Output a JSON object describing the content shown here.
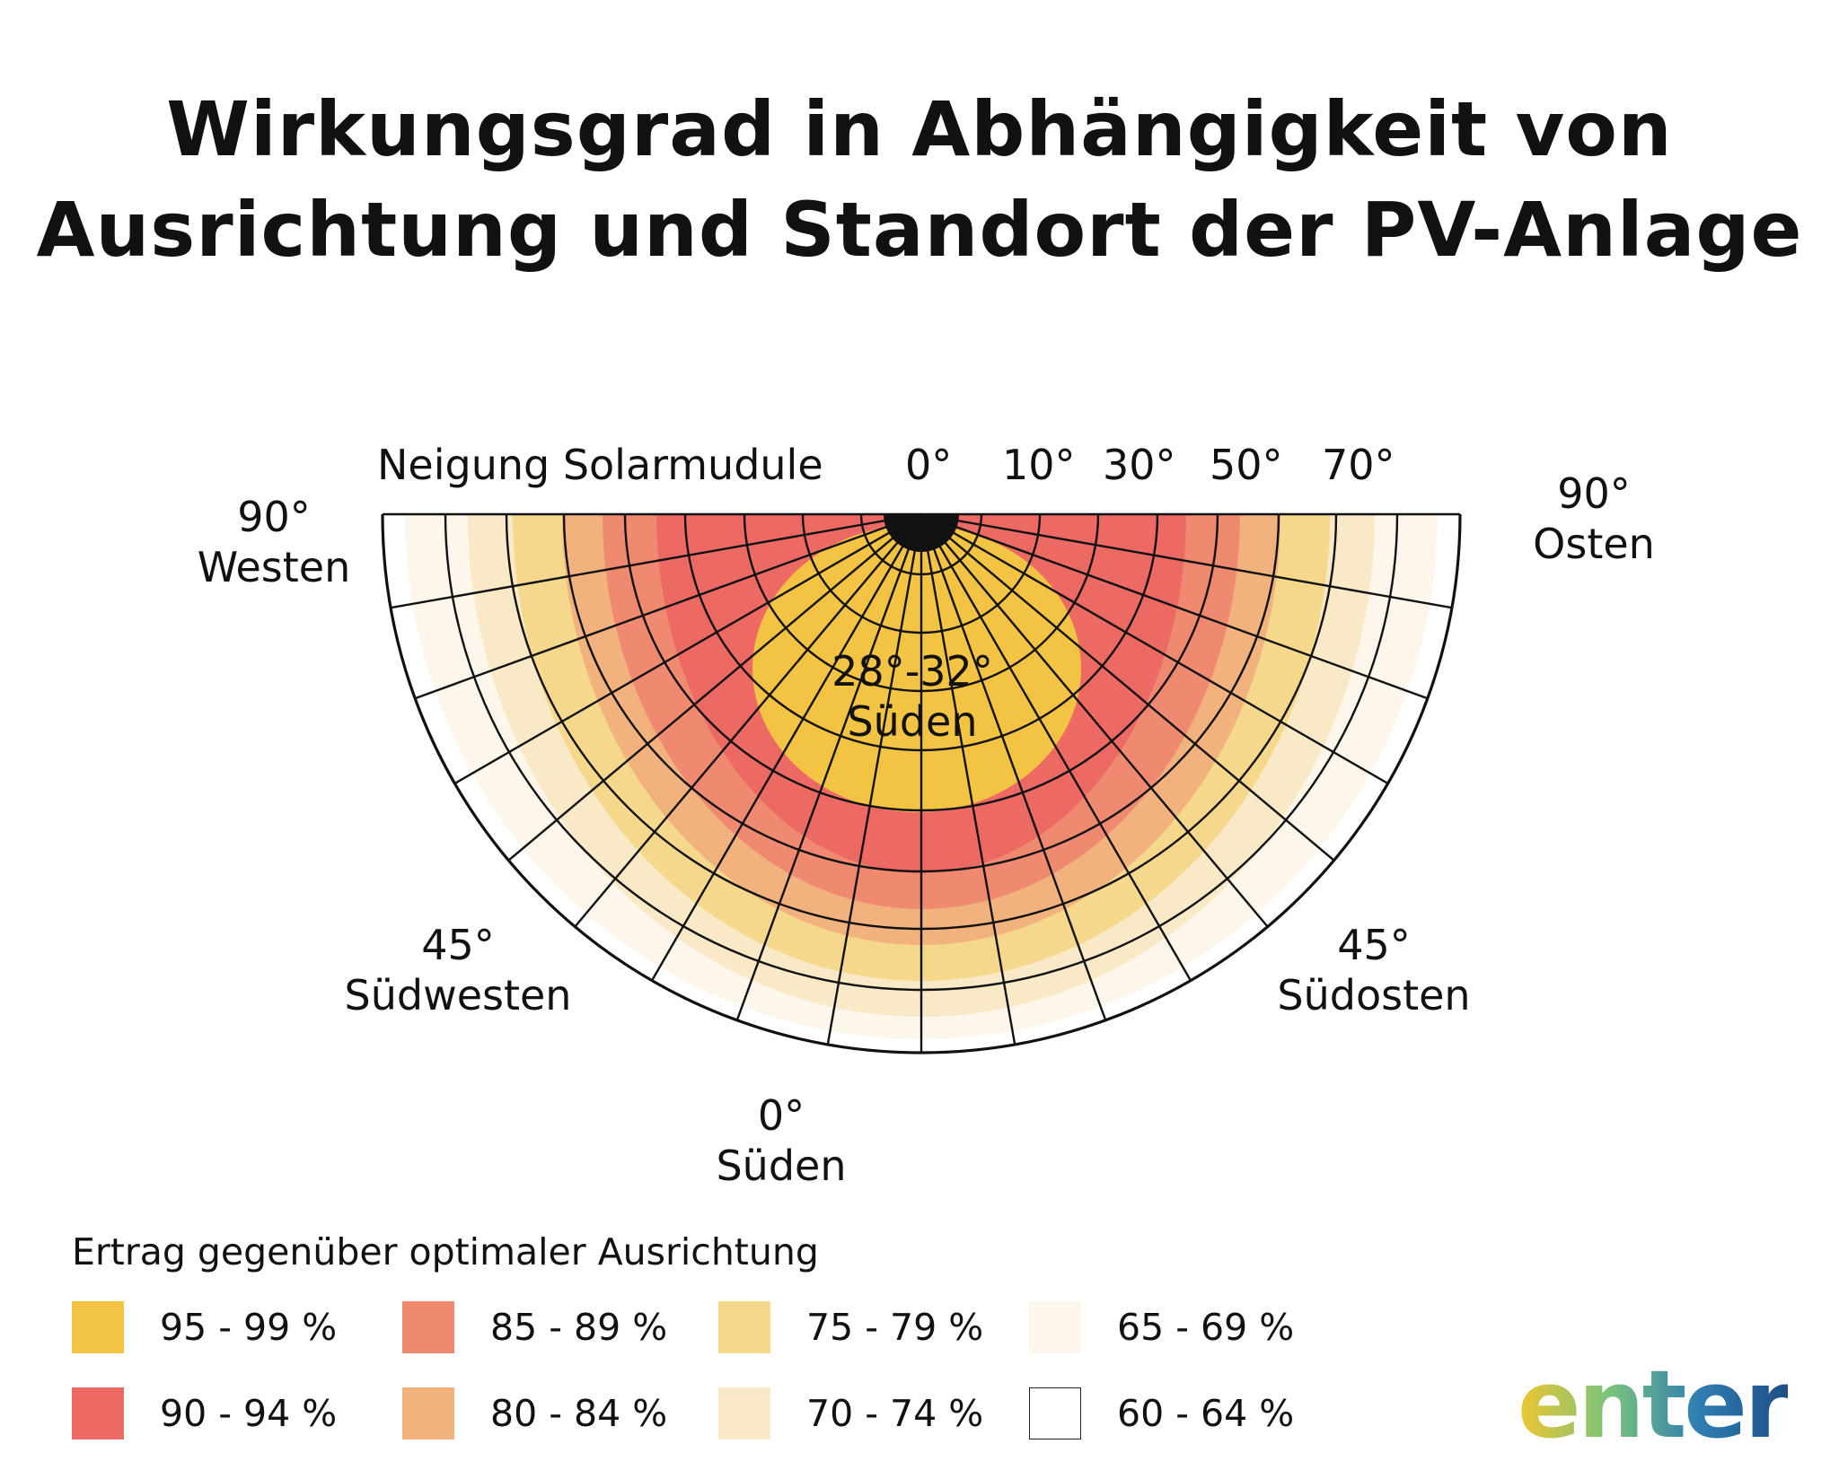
{
  "title_line1": "Wirkungsgrad in Abhängigkeit von",
  "title_line2": "Ausrichtung und Standort der PV-Anlage",
  "diagram": {
    "tilt_axis_label": "Neigung Solarmudule",
    "tilt_ticks": [
      "0°",
      "10°",
      "30°",
      "50°",
      "70°"
    ],
    "west": {
      "angle": "90°",
      "name": "Westen"
    },
    "east": {
      "angle": "90°",
      "name": "Osten"
    },
    "southwest": {
      "angle": "45°",
      "name": "Südwesten"
    },
    "southeast": {
      "angle": "45°",
      "name": "Südosten"
    },
    "south": {
      "angle": "0°",
      "name": "Süden"
    },
    "optimum": {
      "angle": "28°-32°",
      "name": "Süden"
    },
    "zones": [
      {
        "range": "60 - 64 %",
        "color": "#ffffff"
      },
      {
        "range": "65 - 69 %",
        "color": "#fdf6ea"
      },
      {
        "range": "70 - 74 %",
        "color": "#f9e9c6"
      },
      {
        "range": "75 - 79 %",
        "color": "#f5d88c"
      },
      {
        "range": "80 - 84 %",
        "color": "#f2b27e"
      },
      {
        "range": "85 - 89 %",
        "color": "#ef8a70"
      },
      {
        "range": "90 - 94 %",
        "color": "#ec6a63"
      },
      {
        "range": "95 - 99 %",
        "color": "#f3c444"
      }
    ]
  },
  "legend": {
    "title": "Ertrag gegenüber optimaler Ausrichtung",
    "items": [
      {
        "label": "95 - 99 %",
        "color": "#f3c444"
      },
      {
        "label": "90 - 94 %",
        "color": "#ec6a63"
      },
      {
        "label": "85 - 89 %",
        "color": "#ef8a70"
      },
      {
        "label": "80 - 84 %",
        "color": "#f2b27e"
      },
      {
        "label": "75 - 79 %",
        "color": "#f5d88c"
      },
      {
        "label": "70 - 74 %",
        "color": "#f9e9c6"
      },
      {
        "label": "65 - 69 %",
        "color": "#fdf6ea"
      },
      {
        "label": "60 - 64 %",
        "color": "#ffffff"
      }
    ]
  },
  "logo": {
    "text": "enter",
    "gradient": [
      "#f0c52f",
      "#7cc47a",
      "#2f7fb3",
      "#1f4f86"
    ]
  }
}
